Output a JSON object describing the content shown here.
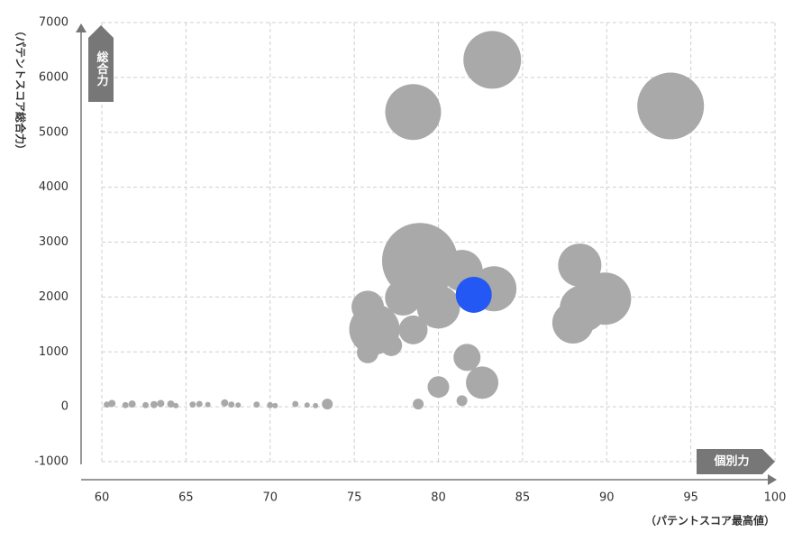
{
  "chart_data": {
    "type": "bubble",
    "x_label": "（パテントスコア最高値）",
    "y_label": "（パテントスコア総合力）",
    "x_arrow_label": "個別力",
    "y_arrow_label": "総合力",
    "x": [
      83.2,
      78.5,
      93.8,
      78.9,
      81.4,
      83.3,
      82.1,
      80.0,
      77.9,
      75.8,
      76.2,
      78.5,
      77.2,
      75.8,
      88.4,
      89.9,
      88.6,
      88.0,
      81.7,
      82.6,
      80.0,
      78.8,
      81.4,
      73.4,
      60.3,
      60.6,
      61.4,
      61.8,
      62.6,
      63.1,
      63.5,
      64.1,
      64.4,
      65.4,
      65.8,
      66.3,
      67.3,
      67.7,
      68.1,
      69.2,
      70.0,
      70.3,
      71.5,
      72.2,
      72.7
    ],
    "values": [
      6320,
      5370,
      5480,
      2660,
      2480,
      2150,
      2040,
      1820,
      1990,
      1820,
      1410,
      1400,
      1120,
      990,
      2580,
      1970,
      1790,
      1530,
      900,
      440,
      360,
      50,
      110,
      50,
      40,
      60,
      30,
      50,
      30,
      40,
      60,
      50,
      20,
      40,
      50,
      40,
      70,
      40,
      30,
      40,
      30,
      20,
      50,
      30,
      20
    ],
    "sizes": [
      1024,
      961,
      1369,
      1764,
      529,
      625,
      400,
      576,
      400,
      324,
      784,
      256,
      144,
      144,
      576,
      841,
      676,
      529,
      225,
      324,
      144,
      36,
      36,
      36,
      12,
      16,
      12,
      16,
      12,
      16,
      16,
      16,
      9,
      12,
      12,
      9,
      16,
      12,
      9,
      12,
      12,
      9,
      12,
      9,
      9
    ],
    "color": "#a9a9a9",
    "highlight": 6,
    "highlight_color": "#2458f5",
    "xlim": [
      60,
      100
    ],
    "xticks": [
      60,
      65,
      70,
      75,
      80,
      85,
      90,
      95,
      100
    ],
    "ylim": [
      -1000,
      7000
    ],
    "yticks": [
      -1000,
      0,
      1000,
      2000,
      3000,
      4000,
      5000,
      6000,
      7000
    ],
    "grid": true
  }
}
